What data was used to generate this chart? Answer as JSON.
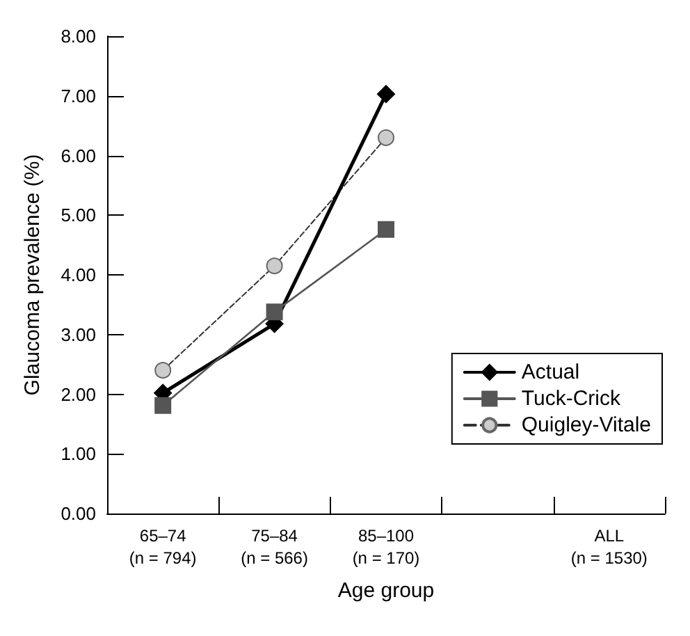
{
  "chart_data": {
    "type": "line",
    "xlabel": "Age group",
    "ylabel": "Glaucoma prevalence (%)",
    "categories": [
      "65–74\n(n = 794)",
      "75–84\n(n = 566)",
      "85–100\n(n = 170)",
      null,
      "ALL\n(n = 1530)"
    ],
    "series": [
      {
        "name": "Actual",
        "color": "#000000",
        "marker": "diamond",
        "line_style": "solid",
        "values": [
          2.02,
          3.18,
          7.03,
          null,
          null
        ]
      },
      {
        "name": "Tuck-Crick",
        "color": "#555555",
        "marker": "square",
        "line_style": "solid",
        "values": [
          1.81,
          3.38,
          4.76,
          null,
          null
        ]
      },
      {
        "name": "Quigley-Vitale",
        "color": "#cccccc",
        "marker": "circle",
        "line_style": "dashed",
        "values": [
          2.4,
          4.15,
          6.3,
          null,
          null
        ]
      }
    ],
    "ylim": [
      0,
      8
    ],
    "yticks": [
      {
        "value": 0,
        "label": "0.00"
      },
      {
        "value": 1,
        "label": "1.00"
      },
      {
        "value": 2,
        "label": "2.00"
      },
      {
        "value": 3,
        "label": "3.00"
      },
      {
        "value": 4,
        "label": "4.00"
      },
      {
        "value": 5,
        "label": "5.00"
      },
      {
        "value": 6,
        "label": "6.00"
      },
      {
        "value": 7,
        "label": "7.00"
      },
      {
        "value": 8,
        "label": "8.00"
      }
    ],
    "grid": false,
    "legend": "right"
  }
}
